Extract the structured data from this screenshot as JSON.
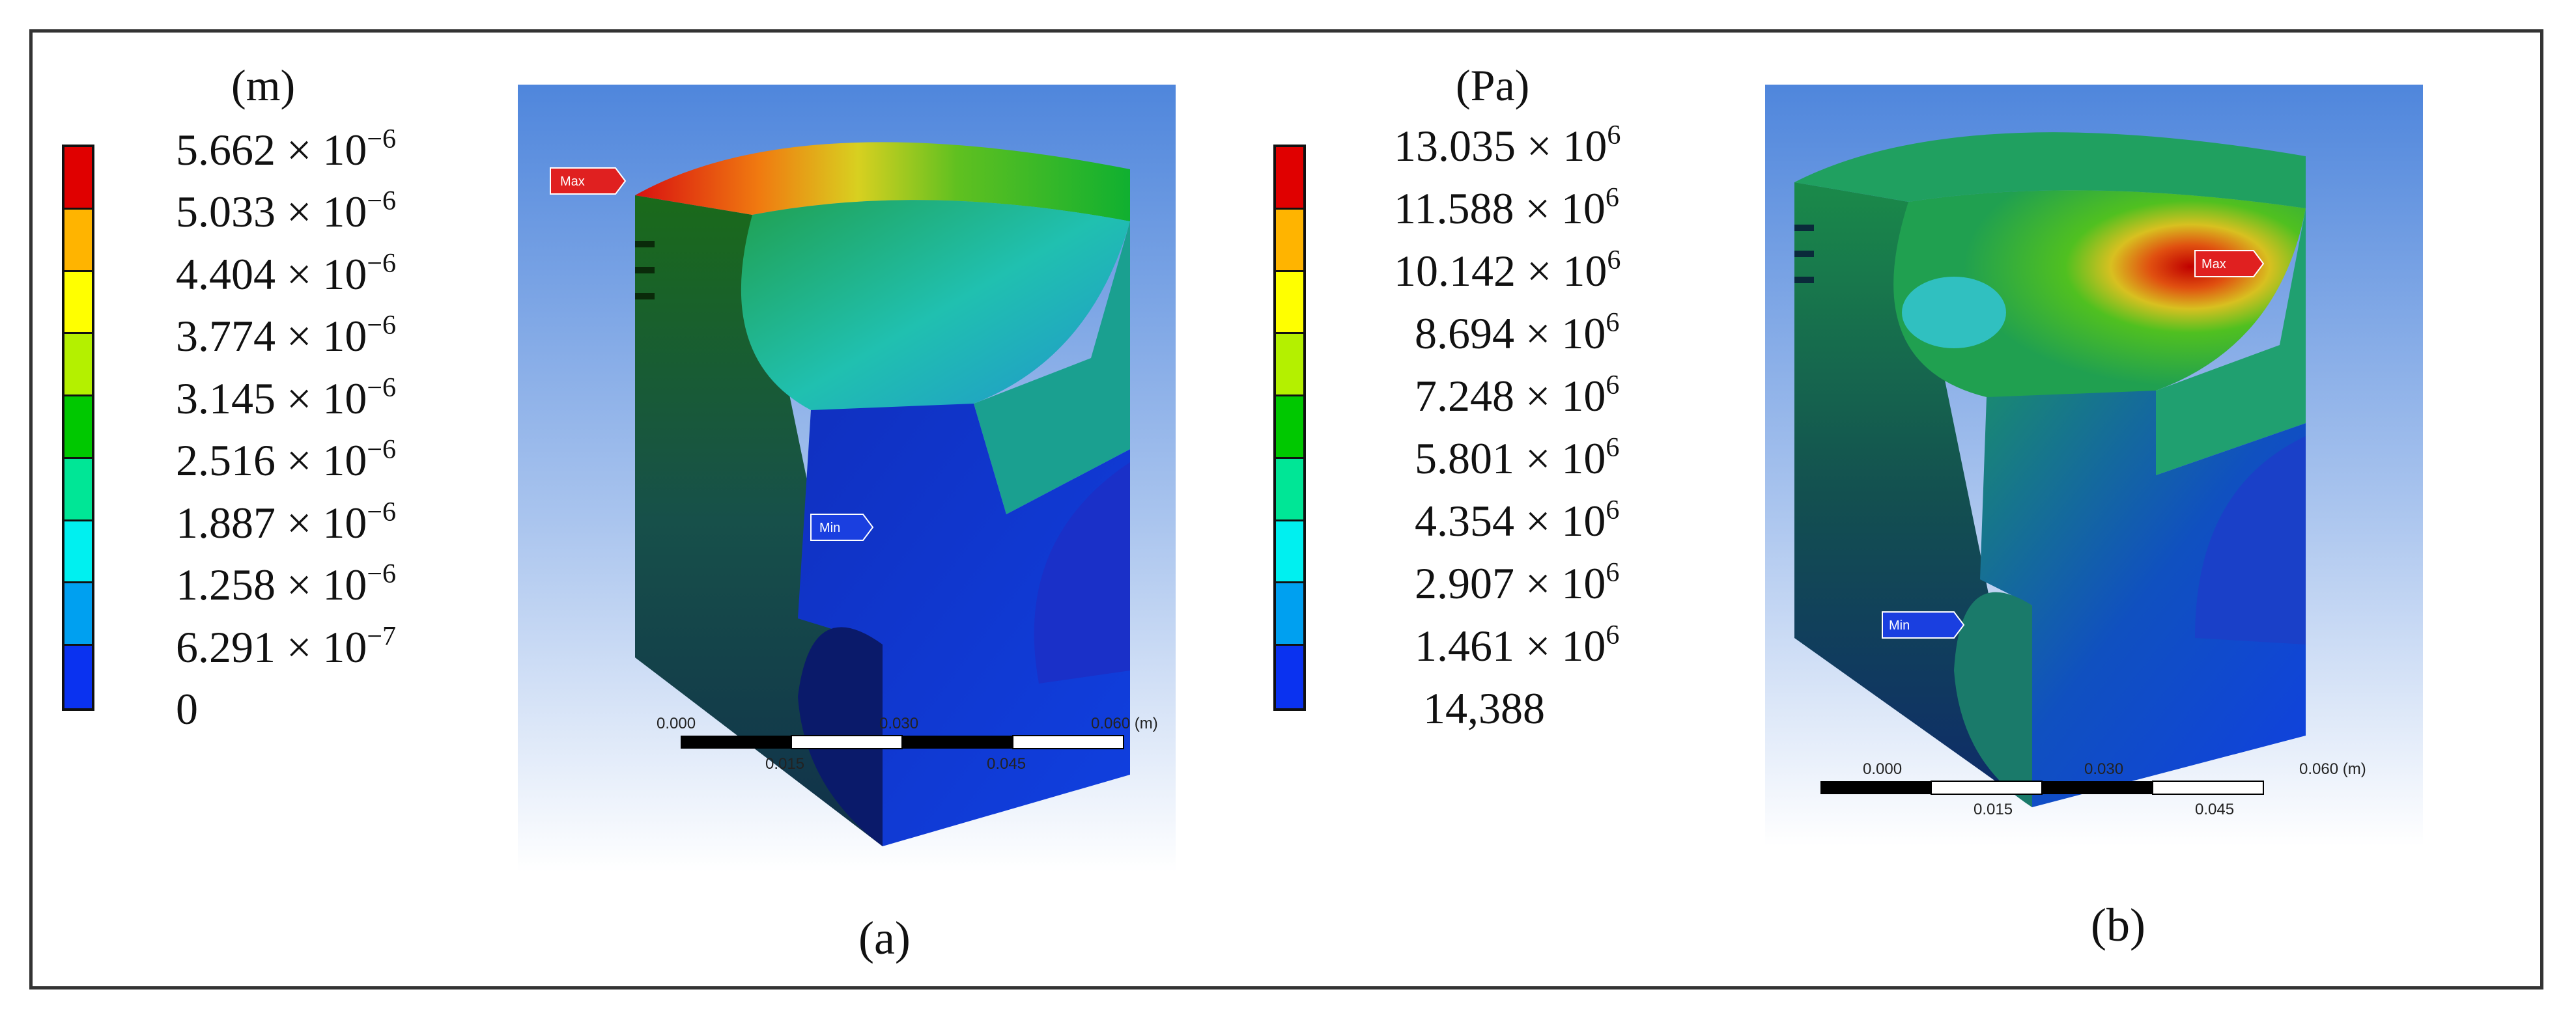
{
  "panel_a": {
    "caption": "(a)",
    "legend": {
      "unit": "(m)",
      "ticks": [
        {
          "mantissa": "5.662 × 10",
          "exp": "−6"
        },
        {
          "mantissa": "5.033 × 10",
          "exp": "−6"
        },
        {
          "mantissa": "4.404 × 10",
          "exp": "−6"
        },
        {
          "mantissa": "3.774 × 10",
          "exp": "−6"
        },
        {
          "mantissa": "3.145 × 10",
          "exp": "−6"
        },
        {
          "mantissa": "2.516 × 10",
          "exp": "−6"
        },
        {
          "mantissa": "1.887 × 10",
          "exp": "−6"
        },
        {
          "mantissa": "1.258 × 10",
          "exp": "−6"
        },
        {
          "mantissa": "6.291 × 10",
          "exp": "−7"
        },
        {
          "mantissa": "0",
          "exp": ""
        }
      ]
    },
    "max_label": "Max",
    "min_label": "Min",
    "ruler": {
      "left": "0.000",
      "mid_low": "0.015",
      "mid": "0.030",
      "mid_high": "0.045",
      "right": "0.060 (m)"
    }
  },
  "panel_b": {
    "caption": "(b)",
    "legend": {
      "unit": "(Pa)",
      "ticks": [
        {
          "mantissa": "13.035 × 10",
          "exp": "6"
        },
        {
          "mantissa": "11.588 × 10",
          "exp": "6"
        },
        {
          "mantissa": "10.142 × 10",
          "exp": "6"
        },
        {
          "mantissa": "8.694 × 10",
          "exp": "6"
        },
        {
          "mantissa": "7.248 × 10",
          "exp": "6"
        },
        {
          "mantissa": "5.801 × 10",
          "exp": "6"
        },
        {
          "mantissa": "4.354 × 10",
          "exp": "6"
        },
        {
          "mantissa": "2.907 × 10",
          "exp": "6"
        },
        {
          "mantissa": "1.461 × 10",
          "exp": "6"
        },
        {
          "mantissa": "14,388",
          "exp": ""
        }
      ]
    },
    "max_label": "Max",
    "min_label": "Min",
    "ruler": {
      "left": "0.000",
      "mid_low": "0.015",
      "mid": "0.030",
      "mid_high": "0.045",
      "right": "0.060 (m)"
    }
  },
  "colormap": [
    "#e00000",
    "#ffb400",
    "#ffff00",
    "#b4f000",
    "#00c800",
    "#00e696",
    "#00f0f0",
    "#00a0f0",
    "#0a32f0"
  ]
}
